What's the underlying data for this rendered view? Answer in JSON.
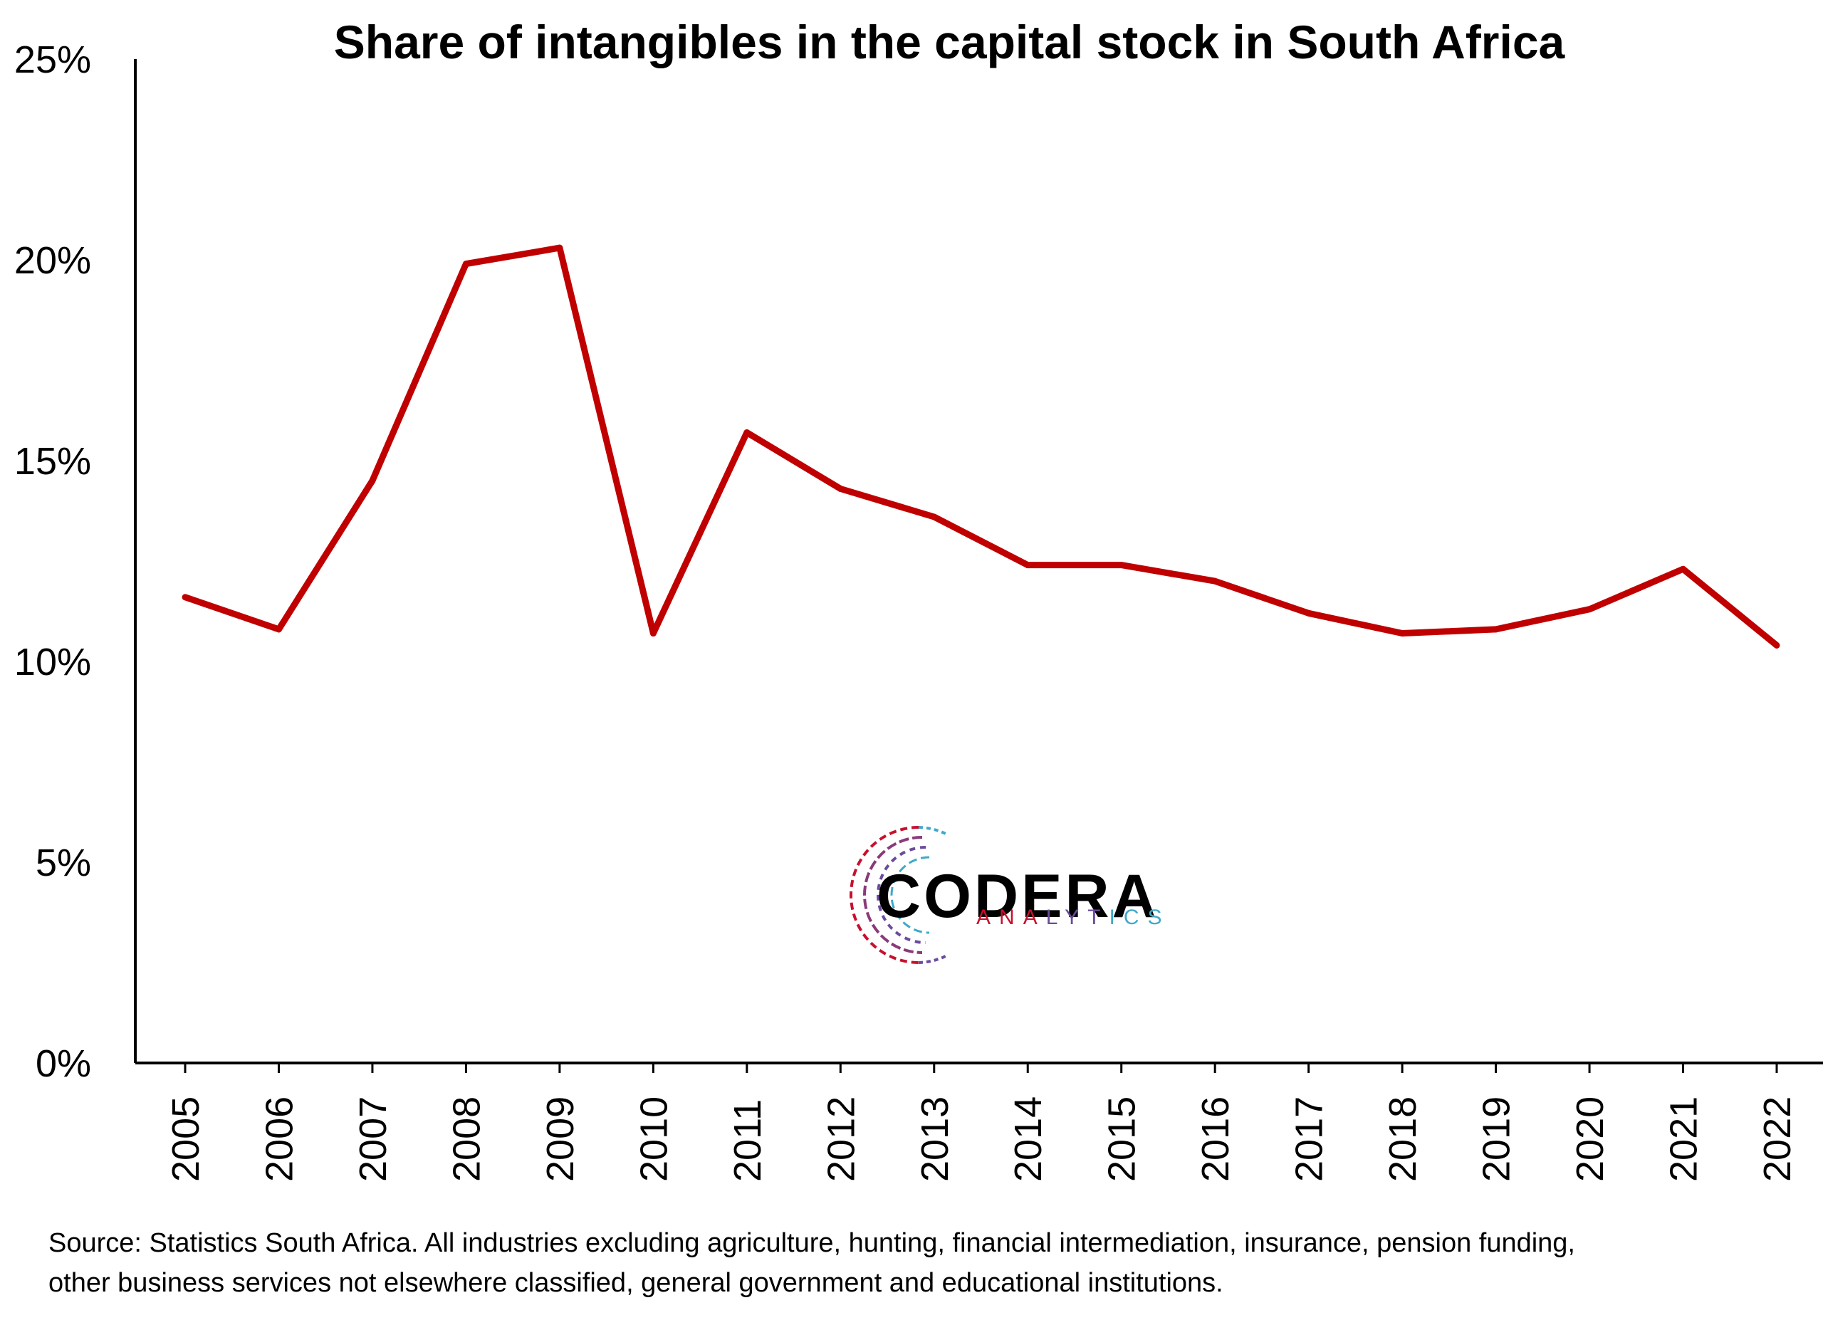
{
  "chart_data": {
    "type": "line",
    "title": "Share of intangibles in the capital stock in South Africa",
    "xlabel": "",
    "ylabel": "",
    "x": [
      "2005",
      "2006",
      "2007",
      "2008",
      "2009",
      "2010",
      "2011",
      "2012",
      "2013",
      "2014",
      "2015",
      "2016",
      "2017",
      "2018",
      "2019",
      "2020",
      "2021",
      "2022"
    ],
    "y_tick_labels": [
      "0%",
      "5%",
      "10%",
      "15%",
      "20%",
      "25%"
    ],
    "y_tick_values": [
      0,
      5,
      10,
      15,
      20,
      25
    ],
    "ylim": [
      0,
      25
    ],
    "grid": false,
    "legend": "none",
    "series": [
      {
        "color": "#c00000",
        "values": [
          11.6,
          10.8,
          14.5,
          19.9,
          20.3,
          10.7,
          15.7,
          14.3,
          13.6,
          12.4,
          12.4,
          12.0,
          11.2,
          10.7,
          10.8,
          11.3,
          12.3,
          10.4
        ]
      }
    ]
  },
  "source_note": {
    "line1": "Source: Statistics South Africa. All industries excluding agriculture, hunting, financial intermediation, insurance, pension funding,",
    "line2": "other business services not elsewhere classified, general government and educational institutions."
  },
  "logo": {
    "name": "CODERA",
    "tagline": "ANALYTICS",
    "colors": [
      "#c8102e",
      "#6a4c9c",
      "#3fa9c9"
    ]
  }
}
